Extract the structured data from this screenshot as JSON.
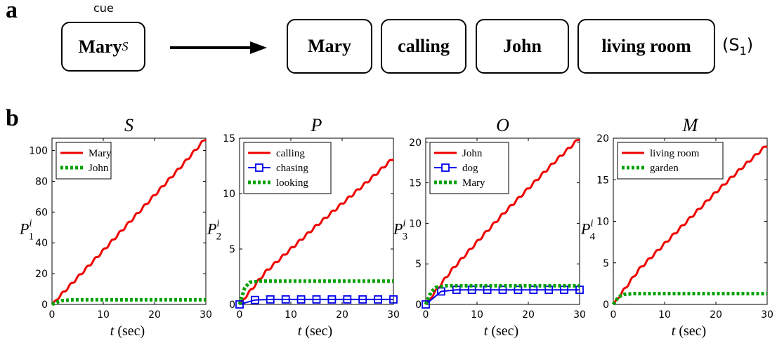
{
  "panel_a": {
    "letter": "a",
    "cue_label": "cue",
    "cue_box": "Mary",
    "cue_subscript": "S",
    "sentence_boxes": [
      "Mary",
      "calling",
      "John",
      "living room"
    ],
    "sentence_label": "(S",
    "sentence_label_sub": "1",
    "sentence_label_close": ")"
  },
  "panel_b": {
    "letter": "b"
  },
  "colors": {
    "red": "#ee0000",
    "blue": "#0000ee",
    "green": "#00a000"
  },
  "chart_data": [
    {
      "type": "line",
      "title": "S",
      "xlabel_var": "t",
      "xlabel_unit": "(sec)",
      "ylabel_base": "P",
      "ylabel_sub": "1",
      "ylabel_sup": "i",
      "xlim": [
        0,
        30
      ],
      "ylim": [
        0,
        108
      ],
      "xticks": [
        0,
        10,
        20,
        30
      ],
      "yticks": [
        0,
        20,
        40,
        60,
        80,
        100
      ],
      "legend": "top-left",
      "series": [
        {
          "name": "Mary",
          "color": "#ee0000",
          "style": "solid-wavy",
          "x": [
            0,
            5,
            10,
            15,
            20,
            25,
            30
          ],
          "y": [
            0,
            17.5,
            35,
            53,
            71,
            89,
            108
          ]
        },
        {
          "name": "John",
          "color": "#00a000",
          "style": "dotted",
          "x": [
            0,
            1,
            2,
            4,
            30
          ],
          "y": [
            0,
            1.5,
            2.5,
            3,
            3
          ]
        }
      ]
    },
    {
      "type": "line",
      "title": "P",
      "xlabel_var": "t",
      "xlabel_unit": "(sec)",
      "ylabel_base": "P",
      "ylabel_sub": "2",
      "ylabel_sup": "i",
      "xlim": [
        0,
        30
      ],
      "ylim": [
        0,
        15
      ],
      "xticks": [
        0,
        10,
        20,
        30
      ],
      "yticks": [
        0,
        5,
        10,
        15
      ],
      "legend": "top-left",
      "series": [
        {
          "name": "calling",
          "color": "#ee0000",
          "style": "solid-wavy",
          "x": [
            0,
            5,
            10,
            15,
            20,
            25,
            30
          ],
          "y": [
            0,
            2.9,
            5,
            7.1,
            9.1,
            11.1,
            13.2
          ]
        },
        {
          "name": "chasing",
          "color": "#0000ee",
          "style": "squares",
          "x": [
            0,
            3,
            6,
            9,
            12,
            15,
            18,
            21,
            24,
            27,
            30
          ],
          "y": [
            0,
            0.4,
            0.45,
            0.45,
            0.45,
            0.45,
            0.45,
            0.45,
            0.45,
            0.45,
            0.45
          ]
        },
        {
          "name": "looking",
          "color": "#00a000",
          "style": "dotted",
          "x": [
            0,
            1,
            2,
            4,
            30
          ],
          "y": [
            0,
            1.5,
            2,
            2.1,
            2.1
          ]
        }
      ]
    },
    {
      "type": "line",
      "title": "O",
      "xlabel_var": "t",
      "xlabel_unit": "(sec)",
      "ylabel_base": "P",
      "ylabel_sub": "3",
      "ylabel_sup": "i",
      "xlim": [
        0,
        30
      ],
      "ylim": [
        0,
        20.5
      ],
      "xticks": [
        0,
        10,
        20,
        30
      ],
      "yticks": [
        0,
        5,
        10,
        15,
        20
      ],
      "legend": "top-left",
      "series": [
        {
          "name": "John",
          "color": "#ee0000",
          "style": "solid-wavy",
          "x": [
            0,
            5,
            10,
            15,
            20,
            25,
            30
          ],
          "y": [
            0,
            4.2,
            7.7,
            11.1,
            14.3,
            17.5,
            20.5
          ]
        },
        {
          "name": "dog",
          "color": "#0000ee",
          "style": "squares",
          "x": [
            0,
            3,
            6,
            9,
            12,
            15,
            18,
            21,
            24,
            27,
            30
          ],
          "y": [
            0,
            1.6,
            1.8,
            1.8,
            1.8,
            1.8,
            1.8,
            1.8,
            1.8,
            1.8,
            1.8
          ]
        },
        {
          "name": "Mary",
          "color": "#00a000",
          "style": "dotted",
          "x": [
            0,
            1,
            2,
            4,
            30
          ],
          "y": [
            0,
            1.5,
            2.1,
            2.3,
            2.3
          ]
        }
      ]
    },
    {
      "type": "line",
      "title": "M",
      "xlabel_var": "t",
      "xlabel_unit": "(sec)",
      "ylabel_base": "P",
      "ylabel_sub": "4",
      "ylabel_sup": "i",
      "xlim": [
        0,
        30
      ],
      "ylim": [
        0,
        20
      ],
      "xticks": [
        0,
        10,
        20,
        30
      ],
      "yticks": [
        0,
        5,
        10,
        15,
        20
      ],
      "legend": "top-left",
      "series": [
        {
          "name": "living room",
          "color": "#ee0000",
          "style": "solid-wavy",
          "x": [
            0,
            5,
            10,
            15,
            20,
            25,
            30
          ],
          "y": [
            0,
            4.2,
            7.3,
            10.4,
            13.5,
            16.4,
            19.2
          ]
        },
        {
          "name": "garden",
          "color": "#00a000",
          "style": "dotted",
          "x": [
            0,
            1,
            2,
            4,
            30
          ],
          "y": [
            0,
            0.9,
            1.2,
            1.3,
            1.3
          ]
        }
      ]
    }
  ]
}
